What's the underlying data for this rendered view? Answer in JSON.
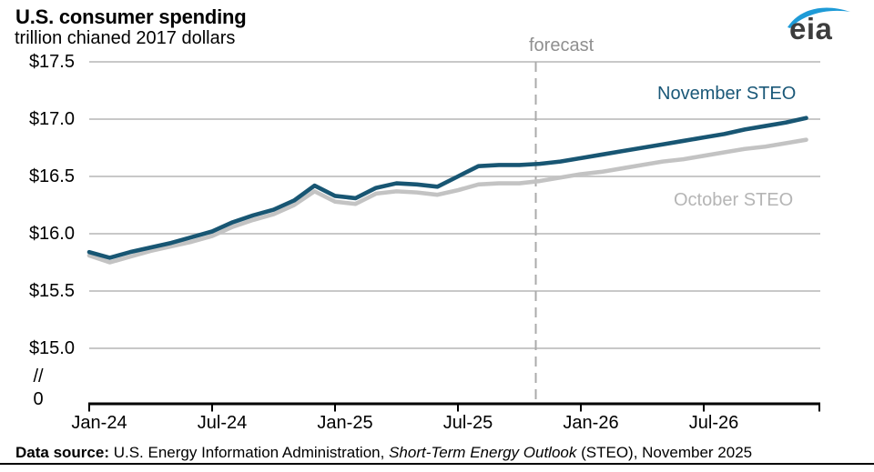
{
  "header": {
    "title": "U.S. consumer spending",
    "subtitle": "trillion chianed 2017 dollars"
  },
  "logo": {
    "text": "eia",
    "text_color": "#3d3d3d",
    "swoosh_color": "#1e9bd7"
  },
  "footer": {
    "label": "Data source:",
    "text_regular": " U.S. Energy Information Administration, ",
    "text_italic": "Short-Term Energy Outlook",
    "text_end": " (STEO), November 2025"
  },
  "chart_data": {
    "type": "line",
    "title": "U.S. consumer spending",
    "xlabel": "",
    "ylabel": "trillion chianed 2017 dollars",
    "ylim_display": [
      15.0,
      17.5
    ],
    "y_axis_break": "//",
    "y_axis_zero": "0",
    "grid": "horizontal",
    "gridline_color": "#c8c8c8",
    "forecast_label": "forecast",
    "forecast_start": "Nov-25",
    "forecast_line_color": "#ababab",
    "y_tick_labels": [
      "$17.5",
      "$17.0",
      "$16.5",
      "$16.0",
      "$15.5",
      "$15.0"
    ],
    "y_tick_values": [
      17.5,
      17.0,
      16.5,
      16.0,
      15.5,
      15.0
    ],
    "x_tick_labels": [
      "Jan-24",
      "Jul-24",
      "Jan-25",
      "Jul-25",
      "Jan-26",
      "Jul-26"
    ],
    "x_tick_month_indices": [
      0,
      6,
      12,
      18,
      24,
      30
    ],
    "months": [
      "Jan-24",
      "Feb-24",
      "Mar-24",
      "Apr-24",
      "May-24",
      "Jun-24",
      "Jul-24",
      "Aug-24",
      "Sep-24",
      "Oct-24",
      "Nov-24",
      "Dec-24",
      "Jan-25",
      "Feb-25",
      "Mar-25",
      "Apr-25",
      "May-25",
      "Jun-25",
      "Jul-25",
      "Aug-25",
      "Sep-25",
      "Oct-25",
      "Nov-25",
      "Dec-25",
      "Jan-26",
      "Feb-26",
      "Mar-26",
      "Apr-26",
      "May-26",
      "Jun-26",
      "Jul-26",
      "Aug-26",
      "Sep-26",
      "Oct-26",
      "Nov-26",
      "Dec-26"
    ],
    "series": [
      {
        "name": "November STEO",
        "color": "#185673",
        "label_color": "#1a5878",
        "values": [
          15.84,
          15.79,
          15.84,
          15.88,
          15.92,
          15.97,
          16.02,
          16.1,
          16.16,
          16.21,
          16.29,
          16.42,
          16.33,
          16.31,
          16.4,
          16.44,
          16.43,
          16.41,
          16.5,
          16.59,
          16.6,
          16.6,
          16.61,
          16.63,
          16.66,
          16.69,
          16.72,
          16.75,
          16.78,
          16.81,
          16.84,
          16.87,
          16.91,
          16.94,
          16.97,
          17.01
        ]
      },
      {
        "name": "October STEO",
        "color": "#c3c3c3",
        "label_color": "#b5b5b5",
        "values": [
          15.81,
          15.75,
          15.8,
          15.85,
          15.89,
          15.93,
          15.98,
          16.06,
          16.12,
          16.17,
          16.25,
          16.37,
          16.28,
          16.26,
          16.35,
          16.37,
          16.36,
          16.34,
          16.38,
          16.43,
          16.44,
          16.44,
          16.46,
          16.49,
          16.52,
          16.54,
          16.57,
          16.6,
          16.63,
          16.65,
          16.68,
          16.71,
          16.74,
          16.76,
          16.79,
          16.82
        ]
      }
    ]
  }
}
